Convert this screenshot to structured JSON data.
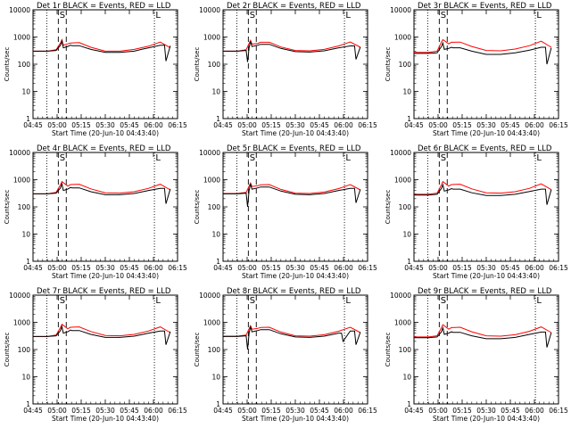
{
  "figure": {
    "start_time_label": "Start Time (20-Jun-10 04:43:40)",
    "y_axis_label": "Counts/sec"
  },
  "colors": {
    "events": "#000000",
    "lld": "#ff0000"
  },
  "chart_data": [
    {
      "type": "line",
      "title": "Det 1r BLACK = Events, RED = LLD",
      "xlabel": "Start Time (20-Jun-10 04:43:40)",
      "ylabel": "Counts/sec",
      "yscale": "log",
      "ylim": [
        1,
        10000
      ],
      "x_ticks": [
        "04:45",
        "05:00",
        "05:15",
        "05:30",
        "05:45",
        "06:00",
        "06:15"
      ],
      "y_ticks": [
        "1",
        "10",
        "100",
        "1000",
        "10000"
      ],
      "markers": [
        "S",
        "L"
      ],
      "series": [
        {
          "name": "Events",
          "x": [
            0,
            10,
            16,
            19,
            20,
            21,
            24,
            26,
            27,
            32,
            40,
            50,
            60,
            70,
            75,
            80,
            88,
            91,
            92,
            95
          ],
          "y": [
            300,
            300,
            320,
            500,
            700,
            400,
            450,
            500,
            480,
            480,
            350,
            270,
            270,
            300,
            350,
            400,
            500,
            500,
            130,
            480
          ]
        },
        {
          "name": "LLD",
          "x": [
            0,
            10,
            16,
            19,
            20,
            21,
            24,
            26,
            32,
            40,
            50,
            60,
            70,
            80,
            88,
            95
          ],
          "y": [
            300,
            300,
            340,
            600,
            800,
            500,
            560,
            600,
            620,
            420,
            300,
            300,
            350,
            460,
            650,
            400
          ]
        }
      ]
    },
    {
      "type": "line",
      "title": "Det 2r BLACK = Events, RED = LLD",
      "xlabel": "Start Time (20-Jun-10 04:43:40)",
      "ylabel": "Counts/sec",
      "yscale": "log",
      "ylim": [
        1,
        10000
      ],
      "x_ticks": [
        "04:45",
        "05:00",
        "05:15",
        "05:30",
        "05:45",
        "06:00",
        "06:15"
      ],
      "y_ticks": [
        "1",
        "10",
        "100",
        "1000",
        "10000"
      ],
      "markers": [
        "S",
        "L"
      ],
      "series": [
        {
          "name": "Events",
          "x": [
            0,
            10,
            16,
            17,
            18,
            19,
            20,
            24,
            26,
            32,
            40,
            50,
            60,
            70,
            80,
            88,
            91,
            92,
            95
          ],
          "y": [
            300,
            300,
            320,
            120,
            400,
            700,
            450,
            500,
            540,
            540,
            380,
            290,
            280,
            310,
            400,
            470,
            470,
            150,
            430
          ]
        },
        {
          "name": "LLD",
          "x": [
            0,
            10,
            16,
            19,
            20,
            24,
            26,
            32,
            40,
            50,
            60,
            70,
            80,
            88,
            95
          ],
          "y": [
            300,
            300,
            340,
            750,
            550,
            580,
            640,
            640,
            430,
            320,
            310,
            350,
            470,
            660,
            420
          ]
        }
      ]
    },
    {
      "type": "line",
      "title": "Det 3r BLACK = Events, RED = LLD",
      "xlabel": "Start Time (20-Jun-10 04:43:40)",
      "ylabel": "Counts/sec",
      "yscale": "log",
      "ylim": [
        1,
        10000
      ],
      "x_ticks": [
        "04:45",
        "05:00",
        "05:15",
        "05:30",
        "05:45",
        "06:00",
        "06:15"
      ],
      "y_ticks": [
        "1",
        "10",
        "100",
        "1000",
        "10000"
      ],
      "markers": [
        "S",
        "L"
      ],
      "series": [
        {
          "name": "Events",
          "x": [
            0,
            10,
            16,
            19,
            20,
            21,
            24,
            26,
            27,
            32,
            40,
            50,
            60,
            70,
            80,
            88,
            91,
            92,
            95
          ],
          "y": [
            250,
            250,
            260,
            450,
            600,
            350,
            380,
            420,
            400,
            400,
            300,
            230,
            230,
            260,
            330,
            420,
            420,
            100,
            400
          ]
        },
        {
          "name": "LLD",
          "x": [
            0,
            10,
            16,
            19,
            20,
            24,
            26,
            32,
            40,
            50,
            60,
            70,
            80,
            88,
            95
          ],
          "y": [
            270,
            270,
            300,
            650,
            800,
            560,
            640,
            650,
            450,
            320,
            310,
            360,
            480,
            700,
            420
          ]
        }
      ]
    },
    {
      "type": "line",
      "title": "Det 4r BLACK = Events, RED = LLD",
      "xlabel": "Start Time (20-Jun-10 04:43:40)",
      "ylabel": "Counts/sec",
      "yscale": "log",
      "ylim": [
        1,
        10000
      ],
      "x_ticks": [
        "04:45",
        "05:00",
        "05:15",
        "05:30",
        "05:45",
        "06:00",
        "06:15"
      ],
      "y_ticks": [
        "1",
        "10",
        "100",
        "1000",
        "10000"
      ],
      "markers": [
        "S",
        "L"
      ],
      "series": [
        {
          "name": "Events",
          "x": [
            0,
            10,
            16,
            19,
            20,
            21,
            24,
            26,
            27,
            32,
            40,
            50,
            60,
            70,
            80,
            88,
            91,
            92,
            95
          ],
          "y": [
            300,
            300,
            320,
            500,
            700,
            400,
            450,
            520,
            500,
            500,
            360,
            280,
            280,
            310,
            400,
            480,
            480,
            130,
            460
          ]
        },
        {
          "name": "LLD",
          "x": [
            0,
            10,
            16,
            19,
            20,
            24,
            26,
            32,
            40,
            50,
            60,
            70,
            80,
            88,
            95
          ],
          "y": [
            300,
            300,
            340,
            650,
            850,
            580,
            660,
            680,
            460,
            330,
            320,
            360,
            480,
            680,
            420
          ]
        }
      ]
    },
    {
      "type": "line",
      "title": "Det 5r BLACK = Events, RED = LLD",
      "xlabel": "Start Time (20-Jun-10 04:43:40)",
      "ylabel": "Counts/sec",
      "yscale": "log",
      "ylim": [
        1,
        10000
      ],
      "x_ticks": [
        "04:45",
        "05:00",
        "05:15",
        "05:30",
        "05:45",
        "06:00",
        "06:15"
      ],
      "y_ticks": [
        "1",
        "10",
        "100",
        "1000",
        "10000"
      ],
      "markers": [
        "S",
        "L"
      ],
      "series": [
        {
          "name": "Events",
          "x": [
            0,
            10,
            16,
            17,
            18,
            19,
            20,
            24,
            26,
            32,
            40,
            50,
            60,
            70,
            80,
            88,
            91,
            92,
            95
          ],
          "y": [
            300,
            300,
            320,
            100,
            400,
            700,
            450,
            500,
            540,
            540,
            380,
            290,
            280,
            310,
            400,
            480,
            480,
            140,
            440
          ]
        },
        {
          "name": "LLD",
          "x": [
            0,
            10,
            16,
            19,
            20,
            24,
            26,
            32,
            40,
            50,
            60,
            70,
            80,
            88,
            95
          ],
          "y": [
            310,
            310,
            340,
            750,
            560,
            600,
            650,
            660,
            440,
            320,
            310,
            350,
            470,
            660,
            420
          ]
        }
      ]
    },
    {
      "type": "line",
      "title": "Det 6r BLACK = Events, RED = LLD",
      "xlabel": "Start Time (20-Jun-10 04:43:40)",
      "ylabel": "Counts/sec",
      "yscale": "log",
      "ylim": [
        1,
        10000
      ],
      "x_ticks": [
        "04:45",
        "05:00",
        "05:15",
        "05:30",
        "05:45",
        "06:00",
        "06:15"
      ],
      "y_ticks": [
        "1",
        "10",
        "100",
        "1000",
        "10000"
      ],
      "markers": [
        "S",
        "L"
      ],
      "series": [
        {
          "name": "Events",
          "x": [
            0,
            10,
            16,
            19,
            20,
            21,
            24,
            26,
            27,
            32,
            40,
            50,
            60,
            70,
            80,
            88,
            91,
            92,
            95
          ],
          "y": [
            270,
            270,
            290,
            480,
            650,
            380,
            420,
            470,
            450,
            450,
            330,
            260,
            260,
            290,
            370,
            450,
            450,
            120,
            430
          ]
        },
        {
          "name": "LLD",
          "x": [
            0,
            10,
            16,
            19,
            20,
            24,
            26,
            32,
            40,
            50,
            60,
            70,
            80,
            88,
            95
          ],
          "y": [
            290,
            290,
            320,
            650,
            850,
            580,
            660,
            680,
            460,
            330,
            320,
            360,
            480,
            700,
            430
          ]
        }
      ]
    },
    {
      "type": "line",
      "title": "Det 7r BLACK = Events, RED = LLD",
      "xlabel": "Start Time (20-Jun-10 04:43:40)",
      "ylabel": "Counts/sec",
      "yscale": "log",
      "ylim": [
        1,
        10000
      ],
      "x_ticks": [
        "04:45",
        "05:00",
        "05:15",
        "05:30",
        "05:45",
        "06:00",
        "06:15"
      ],
      "y_ticks": [
        "1",
        "10",
        "100",
        "1000",
        "10000"
      ],
      "markers": [
        "S",
        "L"
      ],
      "series": [
        {
          "name": "Events",
          "x": [
            0,
            10,
            16,
            19,
            20,
            21,
            24,
            26,
            27,
            32,
            40,
            50,
            60,
            70,
            80,
            88,
            91,
            92,
            95
          ],
          "y": [
            300,
            300,
            320,
            500,
            700,
            400,
            450,
            520,
            500,
            500,
            360,
            280,
            280,
            310,
            400,
            480,
            480,
            150,
            460
          ]
        },
        {
          "name": "LLD",
          "x": [
            0,
            10,
            16,
            19,
            20,
            24,
            26,
            32,
            40,
            50,
            60,
            70,
            80,
            88,
            95
          ],
          "y": [
            300,
            300,
            340,
            650,
            850,
            580,
            660,
            680,
            460,
            330,
            320,
            360,
            480,
            680,
            420
          ]
        }
      ]
    },
    {
      "type": "line",
      "title": "Det 8r BLACK = Events, RED = LLD",
      "xlabel": "Start Time (20-Jun-10 04:43:40)",
      "ylabel": "Counts/sec",
      "yscale": "log",
      "ylim": [
        1,
        10000
      ],
      "x_ticks": [
        "04:45",
        "05:00",
        "05:15",
        "05:30",
        "05:45",
        "06:00",
        "06:15"
      ],
      "y_ticks": [
        "1",
        "10",
        "100",
        "1000",
        "10000"
      ],
      "markers": [
        "S",
        "L"
      ],
      "series": [
        {
          "name": "Events",
          "x": [
            0,
            10,
            16,
            17,
            18,
            19,
            20,
            24,
            26,
            32,
            40,
            50,
            60,
            70,
            80,
            82,
            83,
            88,
            91,
            92,
            95
          ],
          "y": [
            300,
            300,
            320,
            100,
            400,
            700,
            450,
            500,
            540,
            540,
            380,
            290,
            280,
            310,
            400,
            400,
            200,
            480,
            480,
            150,
            440
          ]
        },
        {
          "name": "LLD",
          "x": [
            0,
            10,
            16,
            19,
            20,
            24,
            26,
            32,
            40,
            50,
            60,
            70,
            80,
            88,
            95
          ],
          "y": [
            310,
            310,
            340,
            750,
            560,
            600,
            650,
            660,
            440,
            320,
            310,
            350,
            470,
            660,
            420
          ]
        }
      ]
    },
    {
      "type": "line",
      "title": "Det 9r BLACK = Events, RED = LLD",
      "xlabel": "Start Time (20-Jun-10 04:43:40)",
      "ylabel": "Counts/sec",
      "yscale": "log",
      "ylim": [
        1,
        10000
      ],
      "x_ticks": [
        "04:45",
        "05:00",
        "05:15",
        "05:30",
        "05:45",
        "06:00",
        "06:15"
      ],
      "y_ticks": [
        "1",
        "10",
        "100",
        "1000",
        "10000"
      ],
      "markers": [
        "S",
        "L"
      ],
      "series": [
        {
          "name": "Events",
          "x": [
            0,
            10,
            16,
            19,
            20,
            21,
            24,
            26,
            27,
            32,
            40,
            50,
            60,
            70,
            80,
            88,
            91,
            92,
            95
          ],
          "y": [
            270,
            270,
            290,
            450,
            620,
            360,
            400,
            450,
            430,
            430,
            320,
            250,
            250,
            280,
            360,
            440,
            440,
            120,
            420
          ]
        },
        {
          "name": "LLD",
          "x": [
            0,
            10,
            16,
            19,
            20,
            24,
            26,
            32,
            40,
            50,
            60,
            70,
            80,
            88,
            95
          ],
          "y": [
            290,
            290,
            320,
            630,
            820,
            560,
            640,
            660,
            450,
            320,
            310,
            350,
            470,
            680,
            420
          ]
        }
      ]
    }
  ]
}
